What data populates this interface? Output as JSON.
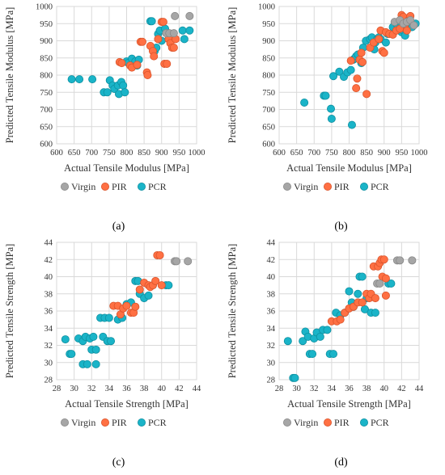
{
  "colors": {
    "Virgin": "#a6a6a6",
    "PIR": "#ff7043",
    "PCR": "#1ab4c8",
    "Virgin_edge": "#888888",
    "PIR_edge": "#d9532b",
    "PCR_edge": "#0e8fa0"
  },
  "chart_data": [
    {
      "type": "scatter",
      "label": "(a)",
      "xlabel": "Actual Tensile Modulus [MPa]",
      "ylabel": "Predicted Tensile Modulus [MPa]",
      "xlim": [
        600,
        1000
      ],
      "ylim": [
        600,
        1000
      ],
      "xticks": [
        600,
        650,
        700,
        750,
        800,
        850,
        900,
        950,
        1000
      ],
      "yticks": [
        600,
        650,
        700,
        750,
        800,
        850,
        900,
        950,
        1000
      ],
      "legend_position": "bottom-right",
      "series": [
        {
          "name": "Virgin",
          "points": [
            [
              938,
              972
            ],
            [
              980,
              972
            ],
            [
              913,
              922
            ],
            [
              922,
              922
            ],
            [
              935,
              922
            ]
          ]
        },
        {
          "name": "PIR",
          "points": [
            [
              780,
              838
            ],
            [
              786,
              835
            ],
            [
              810,
              828
            ],
            [
              815,
              822
            ],
            [
              830,
              830
            ],
            [
              840,
              897
            ],
            [
              845,
              897
            ],
            [
              858,
              808
            ],
            [
              860,
              800
            ],
            [
              868,
              885
            ],
            [
              875,
              870
            ],
            [
              878,
              855
            ],
            [
              890,
              905
            ],
            [
              900,
              955
            ],
            [
              905,
              955
            ],
            [
              908,
              833
            ],
            [
              915,
              833
            ],
            [
              920,
              905
            ],
            [
              925,
              893
            ],
            [
              930,
              880
            ],
            [
              935,
              880
            ],
            [
              940,
              905
            ]
          ]
        },
        {
          "name": "PCR",
          "points": [
            [
              643,
              788
            ],
            [
              665,
              788
            ],
            [
              702,
              788
            ],
            [
              735,
              750
            ],
            [
              745,
              750
            ],
            [
              752,
              785
            ],
            [
              760,
              770
            ],
            [
              765,
              760
            ],
            [
              775,
              770
            ],
            [
              778,
              745
            ],
            [
              785,
              780
            ],
            [
              790,
              770
            ],
            [
              795,
              750
            ],
            [
              800,
              840
            ],
            [
              805,
              835
            ],
            [
              815,
              848
            ],
            [
              820,
              828
            ],
            [
              825,
              840
            ],
            [
              830,
              828
            ],
            [
              835,
              845
            ],
            [
              868,
              957
            ],
            [
              872,
              957
            ],
            [
              880,
              870
            ],
            [
              885,
              880
            ],
            [
              890,
              920
            ],
            [
              895,
              930
            ],
            [
              900,
              900
            ],
            [
              910,
              935
            ],
            [
              960,
              930
            ],
            [
              965,
              905
            ],
            [
              980,
              930
            ]
          ]
        }
      ]
    },
    {
      "type": "scatter",
      "label": "(b)",
      "xlabel": "Actual Tensile Modulus [MPa]",
      "ylabel": "Predicted Tensile Modulus [MPa]",
      "xlim": [
        600,
        1000
      ],
      "ylim": [
        600,
        1000
      ],
      "xticks": [
        600,
        650,
        700,
        750,
        800,
        850,
        900,
        950,
        1000
      ],
      "yticks": [
        600,
        650,
        700,
        750,
        800,
        850,
        900,
        950,
        1000
      ],
      "legend_position": "bottom-right",
      "series": [
        {
          "name": "Virgin",
          "points": [
            [
              930,
              955
            ],
            [
              945,
              960
            ],
            [
              955,
              950
            ],
            [
              965,
              955
            ],
            [
              975,
              960
            ],
            [
              985,
              945
            ]
          ]
        },
        {
          "name": "PIR",
          "points": [
            [
              805,
              842
            ],
            [
              820,
              762
            ],
            [
              823,
              790
            ],
            [
              830,
              845
            ],
            [
              835,
              865
            ],
            [
              838,
              838
            ],
            [
              850,
              745
            ],
            [
              860,
              880
            ],
            [
              870,
              895
            ],
            [
              885,
              905
            ],
            [
              890,
              930
            ],
            [
              895,
              870
            ],
            [
              900,
              865
            ],
            [
              905,
              925
            ],
            [
              915,
              920
            ],
            [
              925,
              918
            ],
            [
              935,
              930
            ],
            [
              945,
              935
            ],
            [
              950,
              975
            ],
            [
              955,
              970
            ],
            [
              960,
              948
            ],
            [
              965,
              930
            ],
            [
              970,
              960
            ],
            [
              975,
              972
            ]
          ]
        },
        {
          "name": "PCR",
          "points": [
            [
              672,
              720
            ],
            [
              728,
              740
            ],
            [
              733,
              740
            ],
            [
              748,
              702
            ],
            [
              750,
              673
            ],
            [
              755,
              797
            ],
            [
              772,
              810
            ],
            [
              785,
              795
            ],
            [
              795,
              808
            ],
            [
              805,
              815
            ],
            [
              808,
              655
            ],
            [
              812,
              845
            ],
            [
              815,
              848
            ],
            [
              820,
              855
            ],
            [
              825,
              860
            ],
            [
              835,
              835
            ],
            [
              840,
              880
            ],
            [
              848,
              900
            ],
            [
              860,
              905
            ],
            [
              865,
              910
            ],
            [
              872,
              875
            ],
            [
              875,
              895
            ],
            [
              880,
              905
            ],
            [
              885,
              910
            ],
            [
              890,
              905
            ],
            [
              905,
              895
            ],
            [
              910,
              920
            ],
            [
              925,
              940
            ],
            [
              935,
              950
            ],
            [
              945,
              955
            ],
            [
              950,
              925
            ],
            [
              955,
              930
            ],
            [
              960,
              915
            ],
            [
              970,
              940
            ],
            [
              980,
              940
            ],
            [
              990,
              950
            ]
          ]
        }
      ]
    },
    {
      "type": "scatter",
      "label": "(c)",
      "xlabel": "Actual Tensile Strength [MPa]",
      "ylabel": "Predicted Tensile Strength [MPa]",
      "xlim": [
        28,
        44
      ],
      "ylim": [
        28,
        44
      ],
      "xticks": [
        28,
        30,
        32,
        34,
        36,
        38,
        40,
        42,
        44
      ],
      "yticks": [
        28,
        30,
        32,
        34,
        36,
        38,
        40,
        42,
        44
      ],
      "legend_position": "bottom-right",
      "series": [
        {
          "name": "Virgin",
          "points": [
            [
              41.5,
              41.8
            ],
            [
              41.7,
              41.8
            ],
            [
              43.0,
              41.8
            ]
          ]
        },
        {
          "name": "PIR",
          "points": [
            [
              34.5,
              36.6
            ],
            [
              35.0,
              36.6
            ],
            [
              35.3,
              35.6
            ],
            [
              35.6,
              36.3
            ],
            [
              36.0,
              36.6
            ],
            [
              36.5,
              35.8
            ],
            [
              36.8,
              35.8
            ],
            [
              37.0,
              36.5
            ],
            [
              37.5,
              38.5
            ],
            [
              38.0,
              39.3
            ],
            [
              38.5,
              39.0
            ],
            [
              38.7,
              38.8
            ],
            [
              39.0,
              39.0
            ],
            [
              39.3,
              39.5
            ],
            [
              39.5,
              42.5
            ],
            [
              39.8,
              42.5
            ],
            [
              40.0,
              39.0
            ]
          ]
        },
        {
          "name": "PCR",
          "points": [
            [
              29.0,
              32.7
            ],
            [
              29.5,
              31.0
            ],
            [
              29.7,
              31.0
            ],
            [
              30.5,
              32.8
            ],
            [
              31.0,
              32.5
            ],
            [
              31.0,
              29.8
            ],
            [
              31.3,
              33.0
            ],
            [
              31.5,
              29.8
            ],
            [
              31.8,
              32.8
            ],
            [
              32.0,
              31.5
            ],
            [
              32.2,
              33.0
            ],
            [
              32.5,
              31.5
            ],
            [
              32.5,
              29.8
            ],
            [
              33.0,
              35.2
            ],
            [
              33.3,
              33.0
            ],
            [
              33.5,
              35.2
            ],
            [
              33.8,
              32.5
            ],
            [
              34.0,
              35.2
            ],
            [
              34.2,
              32.5
            ],
            [
              35.0,
              35.0
            ],
            [
              35.5,
              35.2
            ],
            [
              36.0,
              36.8
            ],
            [
              36.5,
              37.0
            ],
            [
              37.0,
              39.5
            ],
            [
              37.3,
              39.5
            ],
            [
              37.5,
              38.0
            ],
            [
              38.0,
              37.5
            ],
            [
              38.5,
              37.8
            ],
            [
              39.0,
              39.0
            ],
            [
              40.5,
              39.0
            ],
            [
              40.8,
              39.0
            ]
          ]
        }
      ]
    },
    {
      "type": "scatter",
      "label": "(d)",
      "xlabel": "Actual Tensile Strength [MPa]",
      "ylabel": "Predicted Tensile Strength [MPa]",
      "xlim": [
        28,
        44
      ],
      "ylim": [
        28,
        44
      ],
      "xticks": [
        28,
        30,
        32,
        34,
        36,
        38,
        40,
        42,
        44
      ],
      "yticks": [
        28,
        30,
        32,
        34,
        36,
        38,
        40,
        42,
        44
      ],
      "legend_position": "bottom-right",
      "series": [
        {
          "name": "Virgin",
          "points": [
            [
              39.2,
              39.2
            ],
            [
              39.5,
              39.2
            ],
            [
              41.5,
              41.9
            ],
            [
              41.8,
              41.9
            ],
            [
              43.2,
              41.9
            ]
          ]
        },
        {
          "name": "PIR",
          "points": [
            [
              34.0,
              34.8
            ],
            [
              34.6,
              34.8
            ],
            [
              35.0,
              35.0
            ],
            [
              35.5,
              35.8
            ],
            [
              36.0,
              36.3
            ],
            [
              36.5,
              36.5
            ],
            [
              37.0,
              37.0
            ],
            [
              37.5,
              37.0
            ],
            [
              38.0,
              38.0
            ],
            [
              38.3,
              37.5
            ],
            [
              38.5,
              38.0
            ],
            [
              38.8,
              41.2
            ],
            [
              39.0,
              37.5
            ],
            [
              39.3,
              41.2
            ],
            [
              39.5,
              41.6
            ],
            [
              39.7,
              42.0
            ],
            [
              39.8,
              40.0
            ],
            [
              40.0,
              42.0
            ],
            [
              40.2,
              39.8
            ],
            [
              40.2,
              37.8
            ]
          ]
        },
        {
          "name": "PCR",
          "points": [
            [
              29.0,
              32.5
            ],
            [
              29.6,
              28.2
            ],
            [
              29.8,
              28.2
            ],
            [
              30.7,
              32.5
            ],
            [
              31.0,
              33.6
            ],
            [
              31.3,
              33.0
            ],
            [
              31.5,
              31.0
            ],
            [
              31.8,
              31.0
            ],
            [
              32.0,
              32.8
            ],
            [
              32.3,
              33.5
            ],
            [
              32.7,
              33.0
            ],
            [
              33.0,
              33.8
            ],
            [
              33.5,
              33.8
            ],
            [
              33.8,
              31.0
            ],
            [
              34.2,
              31.0
            ],
            [
              34.5,
              35.8
            ],
            [
              35.0,
              35.5
            ],
            [
              35.5,
              35.8
            ],
            [
              36.0,
              38.3
            ],
            [
              36.3,
              37.0
            ],
            [
              36.5,
              36.5
            ],
            [
              37.0,
              38.0
            ],
            [
              37.2,
              40.0
            ],
            [
              37.5,
              40.0
            ],
            [
              37.8,
              36.2
            ],
            [
              38.0,
              37.5
            ],
            [
              38.5,
              35.8
            ],
            [
              39.0,
              35.8
            ],
            [
              40.5,
              39.2
            ],
            [
              40.8,
              39.2
            ]
          ]
        }
      ]
    }
  ]
}
